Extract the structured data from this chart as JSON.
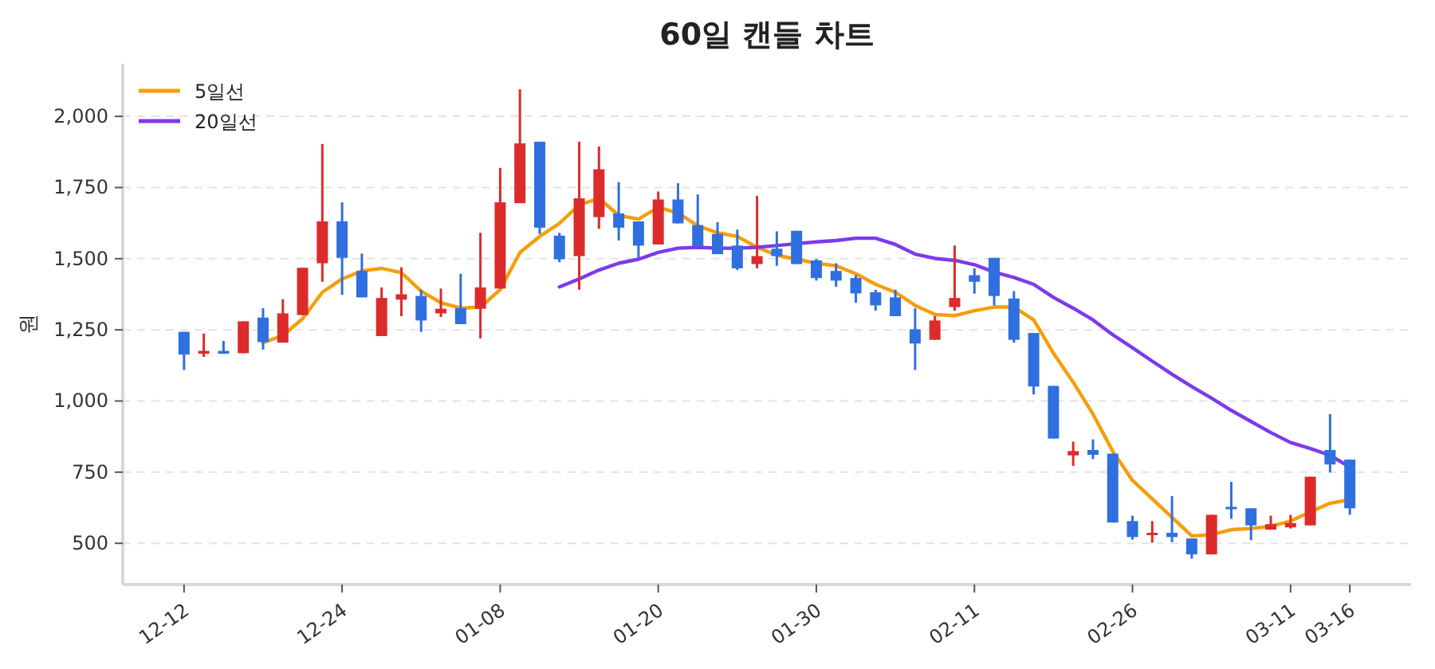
{
  "chart_data": {
    "type": "candlestick",
    "title": "60일 캔들 차트",
    "ylabel": "원",
    "categories": [
      "12-12",
      null,
      null,
      null,
      null,
      null,
      null,
      null,
      "12-24",
      null,
      null,
      null,
      null,
      null,
      null,
      null,
      "01-08",
      null,
      null,
      null,
      null,
      null,
      null,
      null,
      "01-20",
      null,
      null,
      null,
      null,
      null,
      null,
      null,
      "01-30",
      null,
      null,
      null,
      null,
      null,
      null,
      null,
      "02-11",
      null,
      null,
      null,
      null,
      null,
      null,
      null,
      "02-26",
      null,
      null,
      null,
      null,
      null,
      null,
      null,
      "03-11",
      null,
      null,
      "03-16"
    ],
    "ohlc": [
      [
        1243,
        1243,
        1109,
        1163
      ],
      [
        1166,
        1237,
        1155,
        1176
      ],
      [
        1176,
        1211,
        1166,
        1166
      ],
      [
        1168,
        1280,
        1168,
        1280
      ],
      [
        1293,
        1326,
        1181,
        1207
      ],
      [
        1205,
        1358,
        1205,
        1308
      ],
      [
        1302,
        1468,
        1302,
        1468
      ],
      [
        1484,
        1903,
        1419,
        1631
      ],
      [
        1631,
        1698,
        1373,
        1503
      ],
      [
        1457,
        1518,
        1364,
        1364
      ],
      [
        1228,
        1399,
        1228,
        1362
      ],
      [
        1356,
        1470,
        1298,
        1375
      ],
      [
        1369,
        1391,
        1243,
        1283
      ],
      [
        1308,
        1395,
        1295,
        1324
      ],
      [
        1326,
        1447,
        1270,
        1270
      ],
      [
        1324,
        1591,
        1220,
        1399
      ],
      [
        1395,
        1819,
        1395,
        1698
      ],
      [
        1695,
        2095,
        1695,
        1905
      ],
      [
        1911,
        1911,
        1587,
        1609
      ],
      [
        1581,
        1591,
        1488,
        1498
      ],
      [
        1509,
        1911,
        1391,
        1712
      ],
      [
        1646,
        1894,
        1605,
        1814
      ],
      [
        1659,
        1769,
        1564,
        1609
      ],
      [
        1631,
        1631,
        1503,
        1546
      ],
      [
        1550,
        1736,
        1550,
        1708
      ],
      [
        1708,
        1765,
        1624,
        1624
      ],
      [
        1618,
        1726,
        1544,
        1544
      ],
      [
        1587,
        1628,
        1516,
        1516
      ],
      [
        1546,
        1602,
        1460,
        1466
      ],
      [
        1481,
        1721,
        1466,
        1509
      ],
      [
        1535,
        1596,
        1475,
        1509
      ],
      [
        1598,
        1598,
        1481,
        1481
      ],
      [
        1494,
        1499,
        1423,
        1432
      ],
      [
        1457,
        1484,
        1401,
        1423
      ],
      [
        1432,
        1442,
        1345,
        1378
      ],
      [
        1382,
        1391,
        1317,
        1336
      ],
      [
        1364,
        1391,
        1298,
        1298
      ],
      [
        1252,
        1326,
        1109,
        1202
      ],
      [
        1215,
        1298,
        1215,
        1283
      ],
      [
        1330,
        1546,
        1317,
        1362
      ],
      [
        1442,
        1466,
        1377,
        1419
      ],
      [
        1503,
        1503,
        1336,
        1369
      ],
      [
        1360,
        1386,
        1205,
        1215
      ],
      [
        1239,
        1239,
        1023,
        1051
      ],
      [
        1053,
        1053,
        868,
        868
      ],
      [
        809,
        857,
        772,
        824
      ],
      [
        828,
        865,
        796,
        811
      ],
      [
        815,
        815,
        573,
        573
      ],
      [
        578,
        597,
        513,
        522
      ],
      [
        530,
        578,
        502,
        537
      ],
      [
        537,
        666,
        504,
        522
      ],
      [
        517,
        517,
        446,
        461
      ],
      [
        461,
        600,
        461,
        600
      ],
      [
        628,
        716,
        586,
        621
      ],
      [
        623,
        623,
        511,
        563
      ],
      [
        548,
        597,
        548,
        567
      ],
      [
        556,
        600,
        552,
        571
      ],
      [
        563,
        734,
        563,
        734
      ],
      [
        828,
        954,
        749,
        777
      ],
      [
        794,
        794,
        600,
        623
      ]
    ],
    "colors": [
      "#2f6fe0",
      "#dc2b2b",
      "#2f6fe0",
      "#dc2b2b",
      "#2f6fe0",
      "#dc2b2b",
      "#dc2b2b",
      "#dc2b2b",
      "#2f6fe0",
      "#2f6fe0",
      "#dc2b2b",
      "#dc2b2b",
      "#2f6fe0",
      "#dc2b2b",
      "#2f6fe0",
      "#dc2b2b",
      "#dc2b2b",
      "#dc2b2b",
      "#2f6fe0",
      "#2f6fe0",
      "#dc2b2b",
      "#dc2b2b",
      "#2f6fe0",
      "#2f6fe0",
      "#dc2b2b",
      "#2f6fe0",
      "#2f6fe0",
      "#2f6fe0",
      "#2f6fe0",
      "#dc2b2b",
      "#2f6fe0",
      "#2f6fe0",
      "#2f6fe0",
      "#2f6fe0",
      "#2f6fe0",
      "#2f6fe0",
      "#2f6fe0",
      "#2f6fe0",
      "#dc2b2b",
      "#dc2b2b",
      "#2f6fe0",
      "#2f6fe0",
      "#2f6fe0",
      "#2f6fe0",
      "#2f6fe0",
      "#dc2b2b",
      "#2f6fe0",
      "#2f6fe0",
      "#2f6fe0",
      "#dc2b2b",
      "#2f6fe0",
      "#2f6fe0",
      "#dc2b2b",
      "#2f6fe0",
      "#2f6fe0",
      "#dc2b2b",
      "#dc2b2b",
      "#dc2b2b",
      "#2f6fe0",
      "#2f6fe0"
    ],
    "series": [
      {
        "name": "5일선",
        "type": "line",
        "color": "#f59e0b",
        "values": [
          null,
          null,
          null,
          null,
          1205,
          1230,
          1289,
          1382,
          1429,
          1457,
          1466,
          1451,
          1386,
          1345,
          1326,
          1330,
          1391,
          1522,
          1578,
          1624,
          1689,
          1712,
          1652,
          1639,
          1680,
          1661,
          1615,
          1591,
          1578,
          1540,
          1512,
          1498,
          1484,
          1475,
          1447,
          1410,
          1382,
          1336,
          1304,
          1300,
          1317,
          1330,
          1330,
          1285,
          1168,
          1066,
          954,
          824,
          721,
          656,
          591,
          526,
          530,
          548,
          552,
          560,
          578,
          610,
          641,
          653
        ]
      },
      {
        "name": "20일선",
        "type": "line",
        "color": "#7c3aed",
        "values": [
          null,
          null,
          null,
          null,
          null,
          null,
          null,
          null,
          null,
          null,
          null,
          null,
          null,
          null,
          null,
          null,
          null,
          null,
          null,
          1401,
          1429,
          1460,
          1484,
          1498,
          1522,
          1537,
          1540,
          1537,
          1537,
          1540,
          1546,
          1553,
          1559,
          1564,
          1572,
          1572,
          1550,
          1516,
          1501,
          1494,
          1479,
          1453,
          1434,
          1410,
          1364,
          1326,
          1285,
          1233,
          1187,
          1140,
          1094,
          1051,
          1010,
          967,
          928,
          889,
          854,
          833,
          809,
          768
        ]
      }
    ],
    "ylim": [
      355,
      2185
    ],
    "yticks": [
      500,
      750,
      {
        "value": 1000,
        "label": "1,000"
      },
      {
        "value": 1250,
        "label": "1,250"
      },
      {
        "value": 1500,
        "label": "1,500"
      },
      {
        "value": 1750,
        "label": "1,750"
      },
      {
        "value": 2000,
        "label": "2,000"
      }
    ],
    "grid": "y",
    "legend": "top left",
    "line_style": "solid",
    "marker": "none"
  }
}
